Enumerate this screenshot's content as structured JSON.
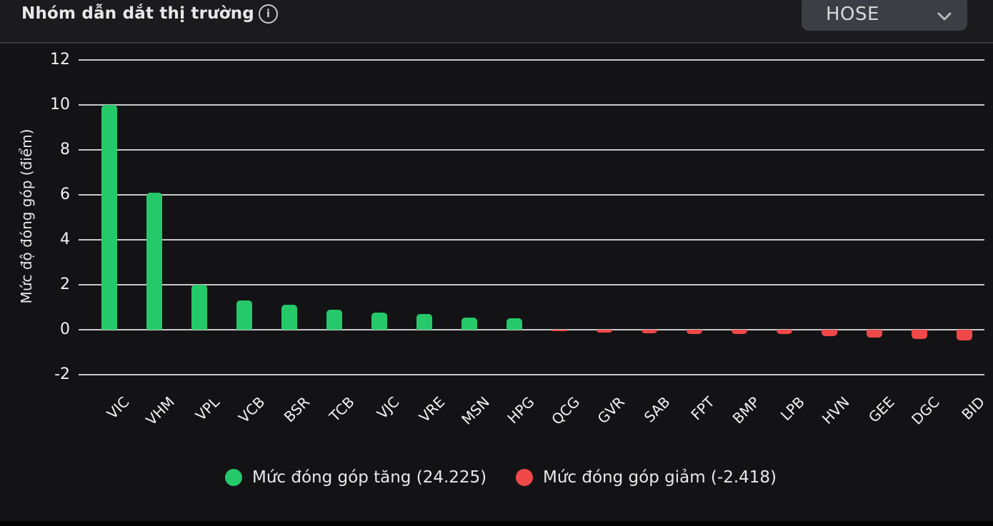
{
  "header": {
    "title": "Nhóm dẫn dắt thị trường",
    "icons": {
      "info-icon": "i-in-circle",
      "chevron-down-icon": "chevron-down"
    },
    "exchange_selector": {
      "value": "HOSE"
    }
  },
  "chart_data": {
    "type": "bar",
    "title": "Nhóm dẫn dắt thị trường",
    "xlabel": "",
    "ylabel": "Mức độ đóng góp (điểm)",
    "yticks": [
      12,
      10,
      8,
      6,
      4,
      2,
      0,
      -2
    ],
    "ylim": [
      -2.6,
      12.7
    ],
    "grid": true,
    "categories": [
      "VIC",
      "VHM",
      "VPL",
      "VCB",
      "BSR",
      "TCB",
      "VJC",
      "VRE",
      "MSN",
      "HPG",
      "QCG",
      "GVR",
      "SAB",
      "FPT",
      "BMP",
      "LPB",
      "HVN",
      "GEE",
      "DGC",
      "BID"
    ],
    "values": [
      10.0,
      6.1,
      2.0,
      1.3,
      1.1,
      0.9,
      0.75,
      0.7,
      0.55,
      0.5,
      -0.04,
      -0.12,
      -0.15,
      -0.18,
      -0.19,
      -0.2,
      -0.28,
      -0.35,
      -0.4,
      -0.48
    ],
    "positive_color": "#25c96a",
    "negative_color": "#ee4848",
    "series": [
      {
        "name": "Mức đóng góp tăng",
        "total": 24.225,
        "color": "#25c96a"
      },
      {
        "name": "Mức đóng góp giảm",
        "total": -2.418,
        "color": "#ee4848"
      }
    ],
    "legend_position": "bottom",
    "legend": [
      {
        "label": "Mức đóng góp tăng (24.225)",
        "color": "#25c96a"
      },
      {
        "label": "Mức đóng góp giảm (-2.418)",
        "color": "#ee4848"
      }
    ]
  }
}
